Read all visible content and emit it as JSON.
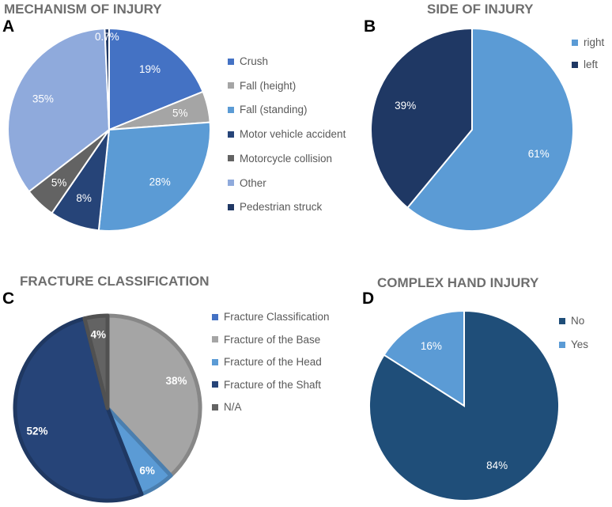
{
  "chart_data": [
    {
      "letter": "A",
      "title": "MECHANISM OF INJURY",
      "type": "pie",
      "categories": [
        "Crush",
        "Fall (height)",
        "Fall (standing)",
        "Motor vehicle accident",
        "Motorcycle collision",
        "Other",
        "Pedestrian struck"
      ],
      "values": [
        19,
        5,
        28,
        8,
        5,
        35,
        0.7
      ],
      "labels": [
        "19%",
        "5%",
        "28%",
        "8%",
        "5%",
        "35%",
        "0.7%"
      ],
      "colors": [
        "#4472C4",
        "#A5A5A5",
        "#5B9BD5",
        "#264478",
        "#636363",
        "#8FAADC",
        "#203864"
      ],
      "label_colors": [
        "#ffffff",
        "#ffffff",
        "#ffffff",
        "#ffffff",
        "#ffffff",
        "#ffffff",
        "#ffffff"
      ],
      "legend_position": "right"
    },
    {
      "letter": "B",
      "title": "SIDE OF INJURY",
      "type": "pie",
      "categories": [
        "right",
        "left"
      ],
      "values": [
        61,
        39
      ],
      "labels": [
        "61%",
        "39%"
      ],
      "colors": [
        "#5B9BD5",
        "#1F3864"
      ],
      "label_colors": [
        "#ffffff",
        "#ffffff"
      ],
      "legend_position": "top-right"
    },
    {
      "letter": "C",
      "title": "FRACTURE CLASSIFICATION",
      "type": "pie",
      "categories": [
        "Fracture Classification",
        "Fracture of the Base",
        "Fracture of the Head",
        "Fracture of the Shaft",
        "N/A"
      ],
      "values": [
        0,
        38,
        6,
        52,
        4
      ],
      "labels": [
        "",
        "38%",
        "6%",
        "52%",
        "4%"
      ],
      "colors": [
        "#4472C4",
        "#A5A5A5",
        "#5B9BD5",
        "#264478",
        "#636363"
      ],
      "label_colors": [
        "#ffffff",
        "#ffffff",
        "#ffffff",
        "#ffffff",
        "#ffffff"
      ],
      "legend_position": "right"
    },
    {
      "letter": "D",
      "title": "COMPLEX HAND INJURY",
      "type": "pie",
      "categories": [
        "No",
        "Yes"
      ],
      "values": [
        84,
        16
      ],
      "labels": [
        "84%",
        "16%"
      ],
      "colors": [
        "#1F4E79",
        "#5B9BD5"
      ],
      "label_colors": [
        "#ffffff",
        "#ffffff"
      ],
      "legend_position": "top-right"
    }
  ]
}
